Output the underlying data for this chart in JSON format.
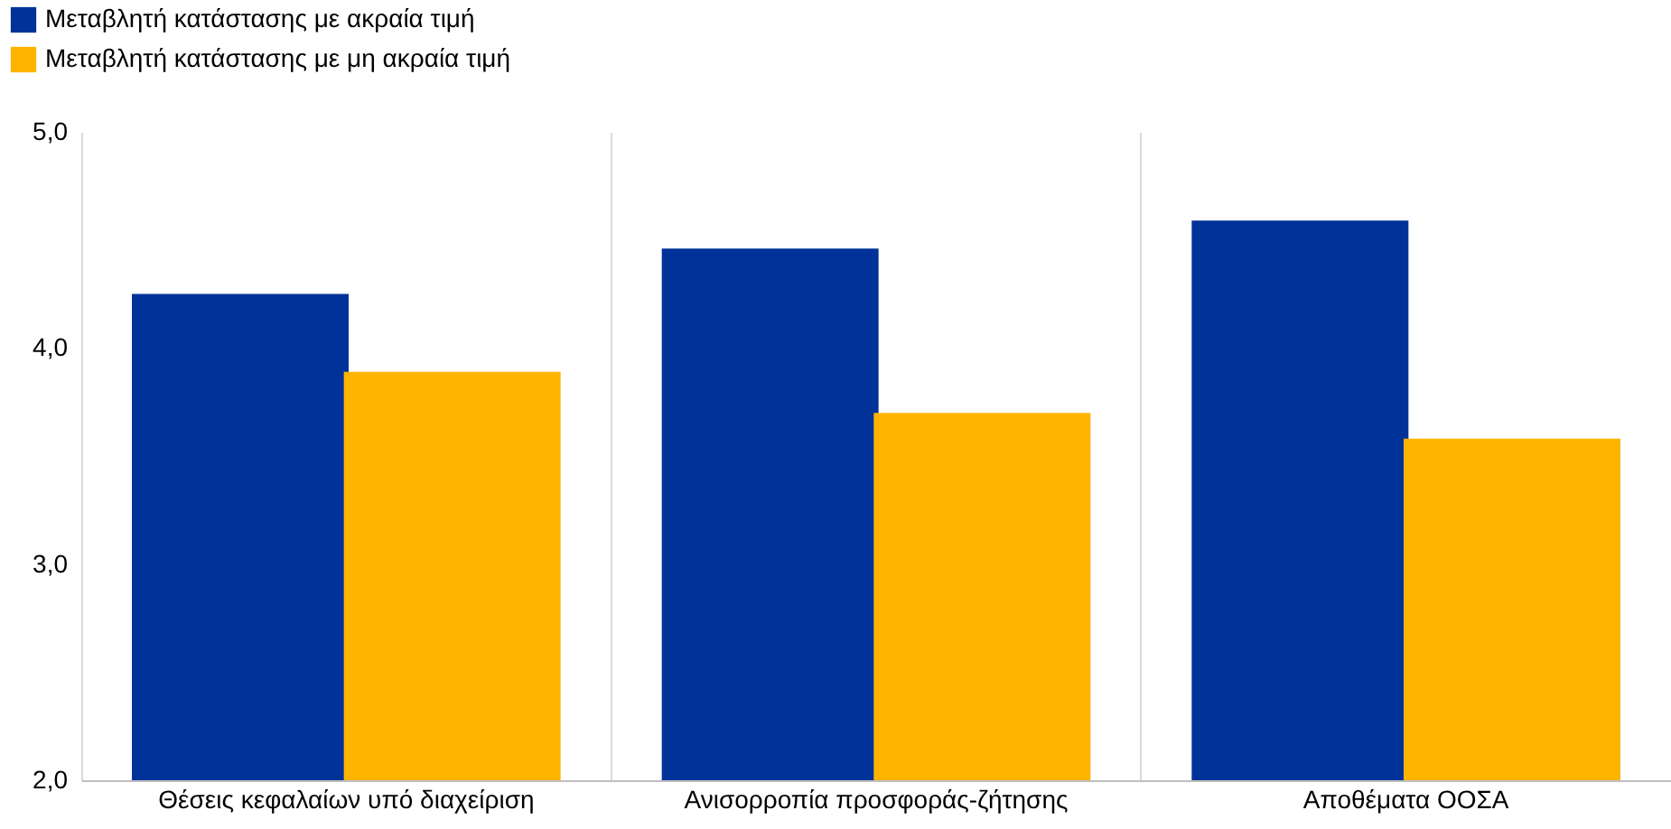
{
  "chart_data": {
    "type": "bar",
    "categories": [
      "Θέσεις κεφαλαίων υπό διαχείριση",
      "Ανισορροπία προσφοράς-ζήτησης",
      "Αποθέματα ΟΟΣΑ"
    ],
    "series": [
      {
        "name": "Μεταβλητή κατάστασης με ακραία τιμή",
        "color": "#003299",
        "values": [
          4.25,
          4.46,
          4.59
        ]
      },
      {
        "name": "Μεταβλητή κατάστασης με μη ακραία τιμή",
        "color": "#ffb400",
        "values": [
          3.89,
          3.7,
          3.58
        ]
      }
    ],
    "ylim": [
      2,
      5
    ],
    "yticks": [
      {
        "value": 2,
        "label": "2,0"
      },
      {
        "value": 3,
        "label": "3,0"
      },
      {
        "value": 4,
        "label": "4,0"
      },
      {
        "value": 5,
        "label": "5,0"
      }
    ],
    "grid": "x",
    "legend": "top left"
  }
}
